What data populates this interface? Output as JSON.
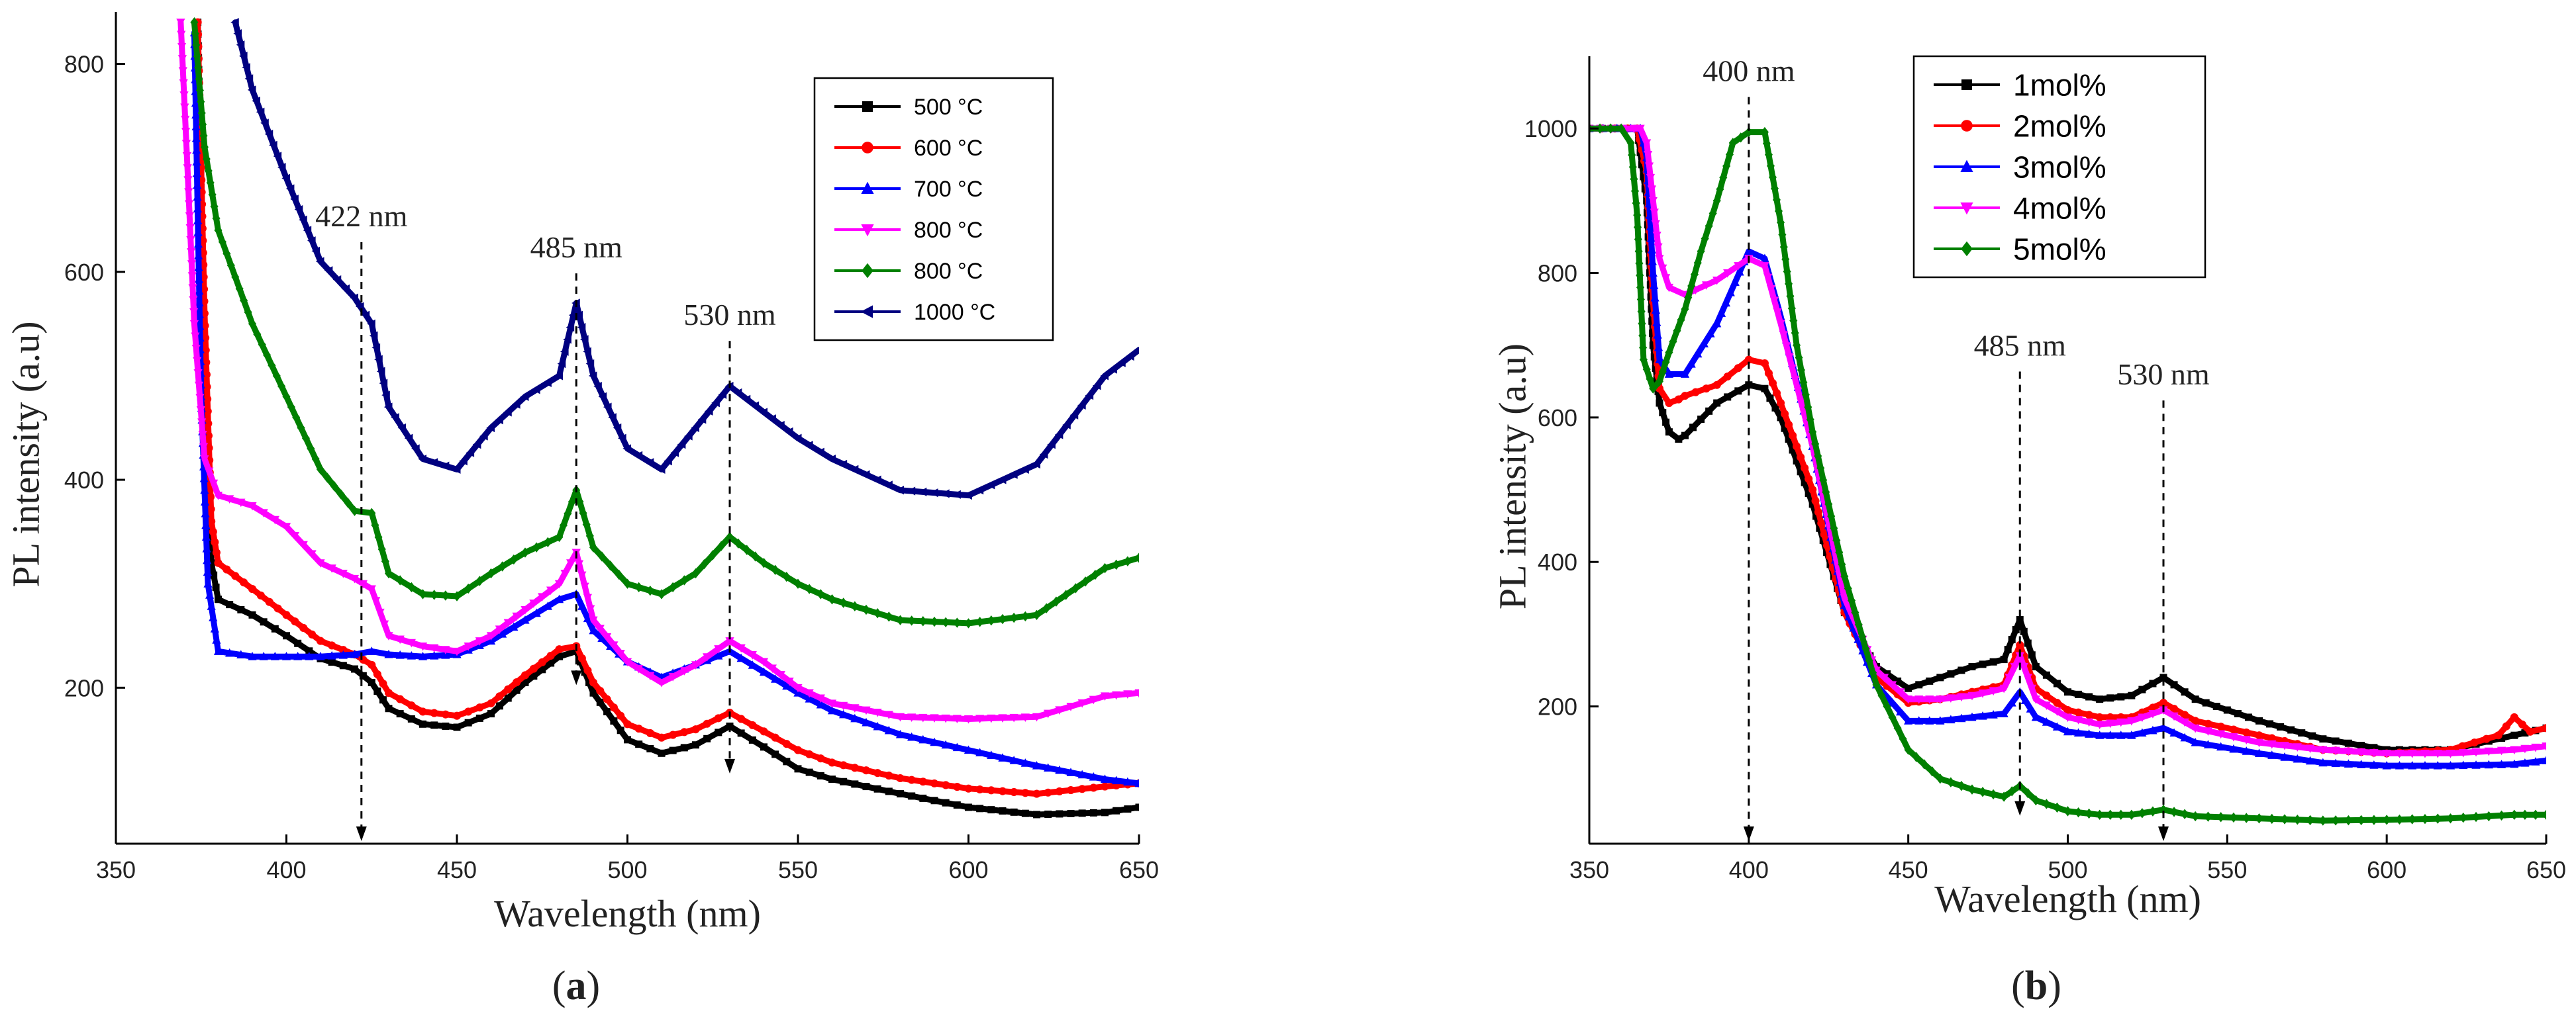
{
  "figure": {
    "panel_labels": [
      "(a)",
      "(b)"
    ]
  },
  "chart_data": [
    {
      "type": "line",
      "panel_label": "(a)",
      "title": "",
      "xlabel": "Wavelength (nm)",
      "ylabel": "PL intensity (a.u)",
      "xlim": [
        350,
        650
      ],
      "ylim": [
        50,
        850
      ],
      "xticks": [
        350,
        400,
        450,
        500,
        550,
        600,
        650
      ],
      "yticks": [
        200,
        400,
        600,
        800
      ],
      "grid": false,
      "legend_position": "top-right",
      "annotations": [
        {
          "text": "422 nm",
          "x": 422,
          "y_top": 640,
          "arrow_to": 50
        },
        {
          "text": "485 nm",
          "x": 485,
          "y_top": 610,
          "arrow_to": 200
        },
        {
          "text": "530 nm",
          "x": 530,
          "y_top": 545,
          "arrow_to": 115
        }
      ],
      "series": [
        {
          "name": "500 °C",
          "color": "#000000",
          "marker": "square",
          "x": [
            374,
            376,
            378,
            380,
            390,
            400,
            410,
            420,
            425,
            430,
            440,
            450,
            460,
            470,
            480,
            485,
            490,
            500,
            510,
            520,
            530,
            540,
            550,
            560,
            580,
            600,
            620,
            640,
            650
          ],
          "y": [
            840,
            500,
            320,
            285,
            270,
            250,
            228,
            218,
            205,
            180,
            165,
            162,
            175,
            205,
            230,
            235,
            195,
            150,
            137,
            145,
            163,
            143,
            122,
            112,
            98,
            85,
            78,
            80,
            85
          ]
        },
        {
          "name": "600 °C",
          "color": "#ff0000",
          "marker": "circle",
          "x": [
            374,
            376,
            378,
            380,
            390,
            400,
            410,
            420,
            425,
            430,
            440,
            450,
            460,
            470,
            480,
            485,
            490,
            500,
            510,
            520,
            530,
            540,
            550,
            560,
            580,
            600,
            620,
            640,
            650
          ],
          "y": [
            840,
            560,
            360,
            320,
            295,
            270,
            245,
            232,
            222,
            195,
            177,
            173,
            185,
            212,
            237,
            240,
            205,
            165,
            152,
            160,
            176,
            158,
            140,
            128,
            113,
            103,
            98,
            105,
            108
          ]
        },
        {
          "name": "700 °C",
          "color": "#0000ff",
          "marker": "triangle-up",
          "x": [
            373,
            375,
            377,
            380,
            390,
            400,
            410,
            420,
            425,
            430,
            440,
            450,
            460,
            470,
            480,
            485,
            490,
            500,
            510,
            520,
            530,
            540,
            550,
            560,
            580,
            600,
            620,
            640,
            650
          ],
          "y": [
            830,
            480,
            300,
            235,
            230,
            230,
            230,
            232,
            235,
            232,
            230,
            232,
            245,
            265,
            285,
            290,
            255,
            225,
            210,
            222,
            235,
            215,
            195,
            178,
            155,
            140,
            125,
            112,
            108
          ]
        },
        {
          "name": "800 °C",
          "color": "#ff00ff",
          "marker": "triangle-down",
          "x": [
            369,
            371,
            373,
            376,
            380,
            390,
            400,
            410,
            420,
            425,
            430,
            440,
            450,
            460,
            470,
            480,
            485,
            490,
            500,
            510,
            520,
            530,
            540,
            550,
            560,
            580,
            600,
            620,
            640,
            650
          ],
          "y": [
            840,
            700,
            550,
            420,
            385,
            375,
            355,
            320,
            305,
            295,
            250,
            240,
            235,
            250,
            275,
            300,
            330,
            265,
            225,
            205,
            222,
            245,
            225,
            200,
            185,
            172,
            170,
            172,
            192,
            195
          ]
        },
        {
          "name": "800 °C",
          "color": "#008000",
          "marker": "diamond",
          "x": [
            373,
            376,
            380,
            385,
            390,
            400,
            410,
            420,
            425,
            430,
            440,
            450,
            460,
            470,
            480,
            485,
            490,
            500,
            510,
            520,
            530,
            540,
            550,
            560,
            580,
            600,
            620,
            640,
            650
          ],
          "y": [
            840,
            720,
            640,
            595,
            550,
            480,
            410,
            370,
            368,
            310,
            290,
            288,
            310,
            330,
            345,
            390,
            335,
            300,
            290,
            310,
            345,
            320,
            300,
            285,
            265,
            262,
            270,
            315,
            325
          ]
        },
        {
          "name": "1000 °C",
          "color": "#000080",
          "marker": "triangle-left",
          "x": [
            385,
            390,
            400,
            410,
            420,
            425,
            430,
            440,
            450,
            460,
            470,
            480,
            485,
            490,
            500,
            510,
            520,
            530,
            540,
            550,
            560,
            580,
            600,
            620,
            640,
            650
          ],
          "y": [
            840,
            775,
            690,
            610,
            575,
            550,
            470,
            420,
            410,
            450,
            480,
            500,
            570,
            500,
            430,
            410,
            450,
            490,
            465,
            440,
            420,
            390,
            385,
            415,
            500,
            525
          ]
        }
      ]
    },
    {
      "type": "line",
      "panel_label": "(b)",
      "title": "",
      "xlabel": "Wavelength (nm)",
      "ylabel": "PL intensity (a.u)",
      "xlim": [
        350,
        650
      ],
      "ylim": [
        10,
        1100
      ],
      "xticks": [
        350,
        400,
        450,
        500,
        550,
        600,
        650
      ],
      "yticks": [
        200,
        400,
        600,
        800,
        1000
      ],
      "grid": false,
      "legend_position": "top-left",
      "annotations": [
        {
          "text": "400 nm",
          "x": 400,
          "y_top": 1060,
          "arrow_to": 10
        },
        {
          "text": "485 nm",
          "x": 485,
          "y_top": 680,
          "arrow_to": 45
        },
        {
          "text": "530 nm",
          "x": 530,
          "y_top": 640,
          "arrow_to": 10
        }
      ],
      "series": [
        {
          "name": "1mol%",
          "color": "#000000",
          "marker": "square",
          "x": [
            350,
            362,
            365,
            368,
            370,
            372,
            375,
            378,
            380,
            390,
            400,
            405,
            410,
            420,
            430,
            440,
            450,
            460,
            470,
            480,
            485,
            490,
            500,
            510,
            520,
            530,
            540,
            560,
            580,
            600,
            620,
            640,
            650
          ],
          "y": [
            1000,
            1000,
            1000,
            900,
            700,
            620,
            580,
            570,
            575,
            620,
            645,
            640,
            600,
            480,
            330,
            255,
            225,
            240,
            255,
            265,
            320,
            255,
            220,
            210,
            215,
            240,
            210,
            180,
            155,
            140,
            140,
            160,
            170
          ]
        },
        {
          "name": "2mol%",
          "color": "#ff0000",
          "marker": "circle",
          "x": [
            350,
            362,
            365,
            368,
            370,
            372,
            375,
            378,
            380,
            390,
            400,
            405,
            410,
            420,
            430,
            440,
            450,
            460,
            470,
            480,
            485,
            490,
            500,
            510,
            520,
            530,
            540,
            560,
            580,
            600,
            620,
            635,
            640,
            645,
            650
          ],
          "y": [
            1000,
            1000,
            1000,
            940,
            760,
            640,
            620,
            625,
            630,
            645,
            680,
            675,
            620,
            500,
            330,
            240,
            205,
            210,
            220,
            230,
            285,
            225,
            195,
            185,
            185,
            205,
            180,
            160,
            140,
            135,
            140,
            160,
            185,
            165,
            170
          ]
        },
        {
          "name": "3mol%",
          "color": "#0000ff",
          "marker": "triangle-up",
          "x": [
            350,
            363,
            366,
            368,
            370,
            372,
            375,
            380,
            390,
            400,
            405,
            410,
            420,
            430,
            440,
            450,
            460,
            470,
            480,
            485,
            490,
            500,
            510,
            520,
            530,
            540,
            560,
            580,
            600,
            620,
            640,
            650
          ],
          "y": [
            1000,
            1000,
            1000,
            960,
            800,
            680,
            660,
            660,
            730,
            830,
            820,
            740,
            560,
            340,
            230,
            180,
            180,
            185,
            190,
            220,
            185,
            165,
            160,
            160,
            170,
            150,
            135,
            122,
            118,
            118,
            120,
            125
          ]
        },
        {
          "name": "4mol%",
          "color": "#ff00ff",
          "marker": "triangle-down",
          "x": [
            350,
            364,
            366,
            368,
            370,
            372,
            375,
            380,
            390,
            400,
            405,
            410,
            420,
            430,
            440,
            450,
            460,
            470,
            480,
            485,
            490,
            500,
            510,
            520,
            530,
            540,
            560,
            580,
            600,
            620,
            640,
            650
          ],
          "y": [
            1000,
            1000,
            1000,
            980,
            900,
            820,
            780,
            770,
            790,
            820,
            810,
            730,
            560,
            350,
            250,
            210,
            210,
            215,
            225,
            270,
            210,
            185,
            175,
            180,
            195,
            170,
            150,
            140,
            135,
            135,
            140,
            145
          ]
        },
        {
          "name": "5mol%",
          "color": "#008000",
          "marker": "diamond",
          "x": [
            350,
            360,
            363,
            365,
            367,
            370,
            372,
            375,
            380,
            385,
            390,
            395,
            400,
            405,
            410,
            415,
            420,
            425,
            430,
            440,
            450,
            460,
            470,
            480,
            485,
            490,
            500,
            510,
            520,
            530,
            540,
            560,
            580,
            600,
            620,
            640,
            650
          ],
          "y": [
            1000,
            1000,
            980,
            880,
            680,
            640,
            650,
            690,
            750,
            830,
            900,
            980,
            995,
            995,
            870,
            700,
            580,
            480,
            380,
            230,
            140,
            100,
            85,
            75,
            90,
            70,
            55,
            50,
            50,
            57,
            48,
            45,
            42,
            43,
            45,
            50,
            50
          ]
        }
      ]
    }
  ]
}
